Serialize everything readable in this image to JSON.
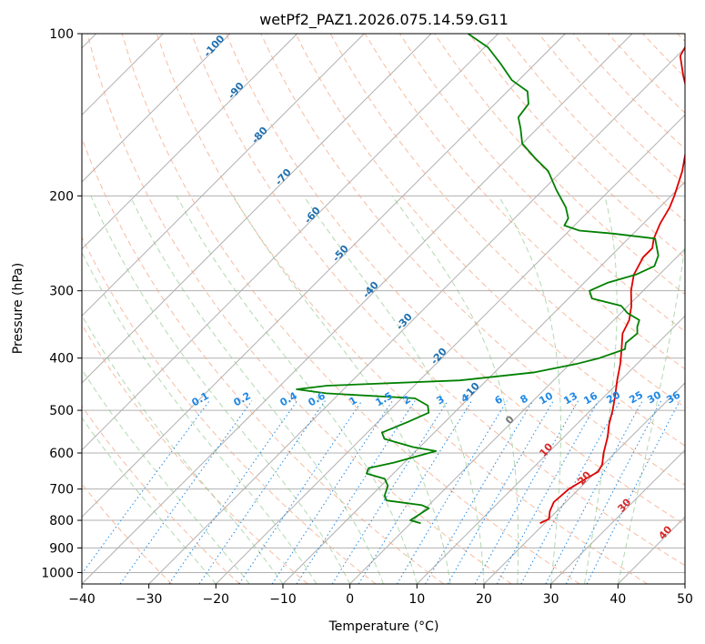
{
  "chart_data": {
    "type": "line",
    "title": "wetPf2_PAZ1.2026.075.14.59.G11",
    "xlabel": "Temperature (°C)",
    "ylabel": "Pressure (hPa)",
    "xlim": [
      -40,
      50
    ],
    "ylim": [
      1050,
      100
    ],
    "y_scale": "log",
    "grid": true,
    "x_ticks": [
      -40,
      -30,
      -20,
      -10,
      0,
      10,
      20,
      30,
      40,
      50
    ],
    "y_ticks": [
      100,
      200,
      300,
      400,
      500,
      600,
      700,
      800,
      900,
      1000
    ],
    "series": [
      {
        "color": "#e00000",
        "points": [
          [
            19.3,
            810
          ],
          [
            20,
            795
          ],
          [
            19,
            770
          ],
          [
            18.2,
            740
          ],
          [
            18.5,
            700
          ],
          [
            19.5,
            670
          ],
          [
            20.3,
            650
          ],
          [
            19.8,
            630
          ],
          [
            18.3,
            600
          ],
          [
            16.5,
            560
          ],
          [
            14.8,
            530
          ],
          [
            13.3,
            500
          ],
          [
            11.5,
            470
          ],
          [
            9.5,
            440
          ],
          [
            7.5,
            410
          ],
          [
            5.5,
            385
          ],
          [
            3.3,
            360
          ],
          [
            2.3,
            340
          ],
          [
            0.5,
            320
          ],
          [
            -1.8,
            300
          ],
          [
            -3.8,
            280
          ],
          [
            -5,
            260
          ],
          [
            -5,
            250
          ],
          [
            -6.2,
            240
          ],
          [
            -7.5,
            225
          ],
          [
            -8.5,
            210
          ],
          [
            -9.5,
            200
          ],
          [
            -12,
            180
          ],
          [
            -14.5,
            165
          ],
          [
            -17.5,
            150
          ],
          [
            -20,
            140
          ],
          [
            -22.5,
            130
          ],
          [
            -26,
            120
          ],
          [
            -29.5,
            110
          ],
          [
            -31,
            100
          ]
        ]
      },
      {
        "color": "#008000",
        "points": [
          [
            1.5,
            810
          ],
          [
            -0.5,
            800
          ],
          [
            0,
            780
          ],
          [
            0.5,
            760
          ],
          [
            -1,
            750
          ],
          [
            -7,
            735
          ],
          [
            -8,
            720
          ],
          [
            -9,
            690
          ],
          [
            -10.5,
            670
          ],
          [
            -14,
            655
          ],
          [
            -14.5,
            640
          ],
          [
            -11.5,
            625
          ],
          [
            -7,
            595
          ],
          [
            -11,
            585
          ],
          [
            -16.5,
            565
          ],
          [
            -17.8,
            550
          ],
          [
            -15.5,
            525
          ],
          [
            -13.8,
            505
          ],
          [
            -15,
            490
          ],
          [
            -18,
            475
          ],
          [
            -32,
            465
          ],
          [
            -37,
            457
          ],
          [
            -33,
            450
          ],
          [
            -14,
            440
          ],
          [
            -4,
            425
          ],
          [
            1,
            410
          ],
          [
            3.5,
            400
          ],
          [
            6,
            385
          ],
          [
            5.2,
            375
          ],
          [
            5.5,
            360
          ],
          [
            4.5,
            350
          ],
          [
            3.8,
            340
          ],
          [
            1,
            330
          ],
          [
            -1,
            320
          ],
          [
            -6.5,
            310
          ],
          [
            -8,
            300
          ],
          [
            -6.5,
            290
          ],
          [
            -3.5,
            280
          ],
          [
            -2,
            270
          ],
          [
            -3,
            258
          ],
          [
            -6,
            240
          ],
          [
            -13,
            235
          ],
          [
            -18.5,
            232
          ],
          [
            -21.5,
            227
          ],
          [
            -22,
            220
          ],
          [
            -24,
            210
          ],
          [
            -28,
            195
          ],
          [
            -32,
            180
          ],
          [
            -36,
            170
          ],
          [
            -40,
            160
          ],
          [
            -42.5,
            150
          ],
          [
            -44.5,
            143
          ],
          [
            -45,
            135
          ],
          [
            -47,
            128
          ],
          [
            -51,
            122
          ],
          [
            -55,
            114
          ],
          [
            -59.5,
            106
          ],
          [
            -64.5,
            100
          ]
        ]
      }
    ],
    "dry_adiabat_labels": [
      "-100",
      "-90",
      "-80",
      "-70",
      "-60",
      "-50",
      "-40",
      "-30",
      "-20",
      "-10",
      "0",
      "10",
      "20",
      "30",
      "40"
    ],
    "mixing_ratio_labels": [
      "0.1",
      "0.2",
      "0.4",
      "0.6",
      "1",
      "1.5",
      "2",
      "3",
      "4",
      "6",
      "8",
      "10",
      "13",
      "16",
      "20",
      "25",
      "30",
      "36"
    ]
  }
}
